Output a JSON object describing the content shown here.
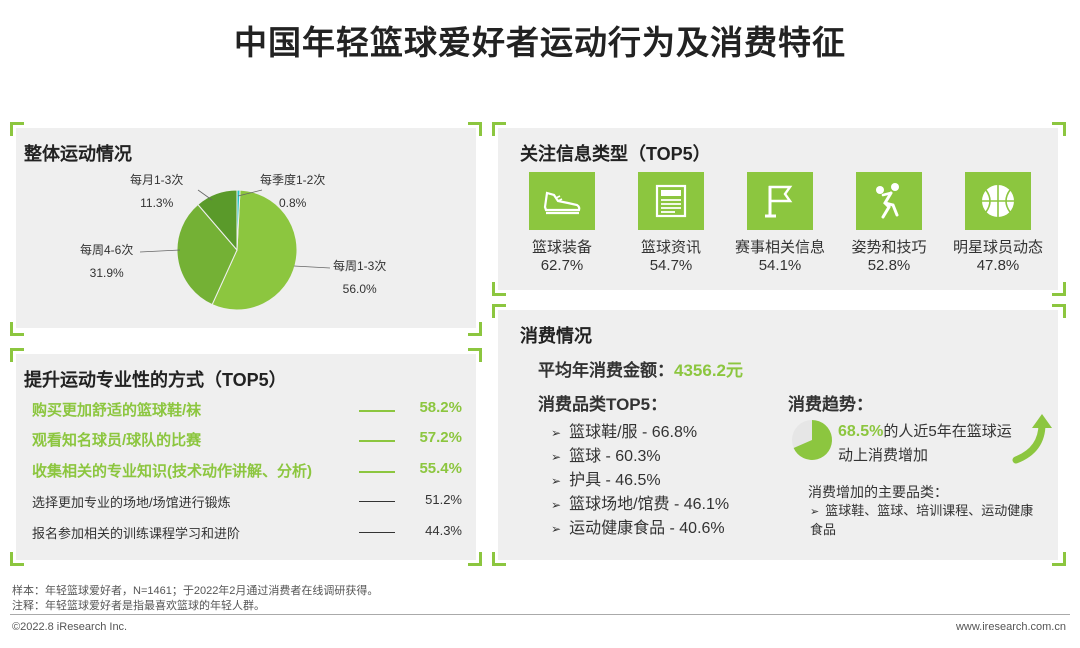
{
  "title": "中国年轻篮球爱好者运动行为及消费特征",
  "colors": {
    "accent": "#8cc63f",
    "dark_green": "#5a9a2a",
    "teal": "#27c4c4",
    "mid_green": "#74b135"
  },
  "overall": {
    "title": "整体运动情况",
    "labels": [
      {
        "name": "每月1-3次",
        "value": "11.3%"
      },
      {
        "name": "每季度1-2次",
        "value": "0.8%"
      },
      {
        "name": "每周4-6次",
        "value": "31.9%"
      },
      {
        "name": "每周1-3次",
        "value": "56.0%"
      }
    ]
  },
  "chart_data": {
    "type": "pie",
    "title": "整体运动情况",
    "categories": [
      "每周1-3次",
      "每周4-6次",
      "每月1-3次",
      "每季度1-2次"
    ],
    "values": [
      56.0,
      31.9,
      11.3,
      0.8
    ],
    "unit": "%"
  },
  "info": {
    "title": "关注信息类型（TOP5）",
    "items": [
      {
        "name": "篮球装备",
        "pct": "62.7%",
        "icon": "sneaker-icon"
      },
      {
        "name": "篮球资讯",
        "pct": "54.7%",
        "icon": "newspaper-icon"
      },
      {
        "name": "赛事相关信息",
        "pct": "54.1%",
        "icon": "flag-icon"
      },
      {
        "name": "姿势和技巧",
        "pct": "52.8%",
        "icon": "player-icon"
      },
      {
        "name": "明星球员动态",
        "pct": "47.8%",
        "icon": "basketball-icon"
      }
    ]
  },
  "ways": {
    "title": "提升运动专业性的方式（TOP5）",
    "items": [
      {
        "text": "购买更加舒适的篮球鞋/袜",
        "pct": "58.2%"
      },
      {
        "text": "观看知名球员/球队的比赛",
        "pct": "57.2%"
      },
      {
        "text": "收集相关的专业知识(技术动作讲解、分析)",
        "pct": "55.4%"
      },
      {
        "text": "选择更加专业的场地/场馆进行锻炼",
        "pct": "51.2%"
      },
      {
        "text": "报名参加相关的训练课程学习和进阶",
        "pct": "44.3%"
      }
    ]
  },
  "consumption": {
    "title": "消费情况",
    "avg_label": "平均年消费金额：",
    "avg_value": "4356.2元",
    "cat_title": "消费品类TOP5：",
    "categories": [
      "篮球鞋/服 - 66.8%",
      "篮球 - 60.3%",
      "护具 - 46.5%",
      "篮球场地/馆费 - 46.1%",
      "运动健康食品 - 40.6%"
    ],
    "trend_title": "消费趋势：",
    "trend_pct": "68.5%",
    "trend_text": "的人近5年在篮球运动上消费增加",
    "trend_fraction": 0.685,
    "sub_title": "消费增加的主要品类：",
    "sub_items": "篮球鞋、篮球、培训课程、运动健康食品"
  },
  "footer": {
    "sample": "样本：年轻篮球爱好者，N=1461；于2022年2月通过消费者在线调研获得。",
    "note": "注释：年轻篮球爱好者是指最喜欢篮球的年轻人群。",
    "copyright": "©2022.8 iResearch Inc.",
    "website": "www.iresearch.com.cn"
  }
}
